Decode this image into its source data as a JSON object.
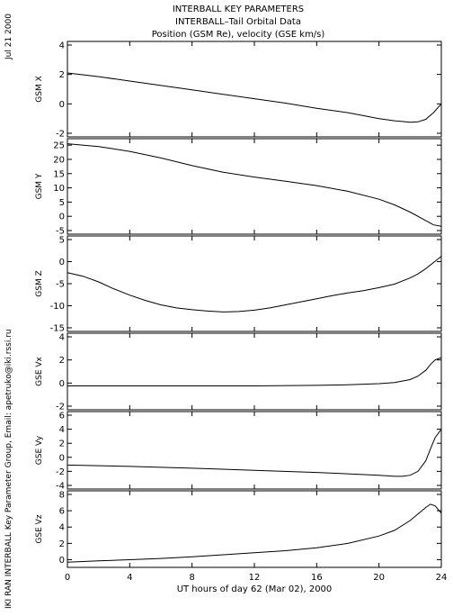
{
  "header": {
    "title_lines": [
      "INTERBALL KEY PARAMETERS",
      "INTERBALL–Tail Orbital Data",
      "Position (GSM Re), velocity (GSE km/s)"
    ],
    "date": "Jul 21 2000",
    "side_credit": "IKI RAN INTERBALL Key Parameter Group, Email: apetruko@iki.rssi.ru"
  },
  "chart_data": [
    {
      "type": "line",
      "ylabel": "GSM X",
      "ylim": [
        -2,
        4
      ],
      "yticks": [
        "-2",
        "0",
        "2",
        "4"
      ],
      "x": [
        0,
        2,
        4,
        6,
        8,
        10,
        12,
        14,
        16,
        18,
        20,
        21,
        21.5,
        22,
        22.5,
        23,
        23.5,
        24
      ],
      "values": [
        2.1,
        1.85,
        1.55,
        1.25,
        0.95,
        0.65,
        0.35,
        0.05,
        -0.3,
        -0.6,
        -1.0,
        -1.15,
        -1.2,
        -1.25,
        -1.22,
        -1.05,
        -0.6,
        0.0
      ]
    },
    {
      "type": "line",
      "ylabel": "GSM Y",
      "ylim": [
        -5,
        26
      ],
      "yticks": [
        "-5",
        "0",
        "5",
        "10",
        "15",
        "20",
        "25"
      ],
      "x": [
        0,
        2,
        4,
        6,
        8,
        10,
        12,
        14,
        16,
        18,
        20,
        21,
        22,
        23,
        23.5,
        24
      ],
      "values": [
        25.5,
        24.5,
        22.8,
        20.5,
        17.8,
        15.5,
        13.8,
        12.3,
        10.8,
        8.8,
        6.0,
        4.0,
        1.5,
        -1.5,
        -3.0,
        -3.5
      ]
    },
    {
      "type": "line",
      "ylabel": "GSM Z",
      "ylim": [
        -15,
        5
      ],
      "yticks": [
        "-15",
        "-10",
        "-5",
        "0",
        "5"
      ],
      "x": [
        0,
        1,
        2,
        3,
        4,
        5,
        6,
        7,
        8,
        9,
        10,
        11,
        12,
        13,
        14,
        15,
        16,
        17,
        18,
        19,
        20,
        21,
        22,
        22.5,
        23,
        23.5,
        24
      ],
      "values": [
        -2.5,
        -3.3,
        -4.6,
        -6.2,
        -7.6,
        -8.8,
        -9.8,
        -10.5,
        -10.9,
        -11.2,
        -11.4,
        -11.3,
        -11.0,
        -10.5,
        -9.8,
        -9.1,
        -8.4,
        -7.7,
        -7.1,
        -6.6,
        -5.9,
        -5.1,
        -3.7,
        -2.8,
        -1.6,
        -0.2,
        1.2
      ]
    },
    {
      "type": "line",
      "ylabel": "GSE Vx",
      "ylim": [
        -2,
        4
      ],
      "yticks": [
        "-2",
        "0",
        "2",
        "4"
      ],
      "x": [
        0,
        4,
        8,
        12,
        16,
        18,
        20,
        21,
        22,
        22.5,
        23,
        23.3,
        23.6,
        24
      ],
      "values": [
        -0.25,
        -0.25,
        -0.25,
        -0.25,
        -0.2,
        -0.15,
        -0.05,
        0.05,
        0.3,
        0.6,
        1.1,
        1.6,
        2.0,
        2.2
      ]
    },
    {
      "type": "line",
      "ylabel": "GSE Vy",
      "ylim": [
        -4,
        6
      ],
      "yticks": [
        "-4",
        "-2",
        "0",
        "2",
        "4",
        "6"
      ],
      "x": [
        0,
        4,
        8,
        12,
        16,
        20,
        21,
        21.5,
        22,
        22.5,
        23,
        23.3,
        23.6,
        24
      ],
      "values": [
        -1.1,
        -1.3,
        -1.55,
        -1.85,
        -2.15,
        -2.55,
        -2.7,
        -2.7,
        -2.55,
        -2.0,
        -0.5,
        1.2,
        2.8,
        4.0
      ]
    },
    {
      "type": "line",
      "ylabel": "GSE Vz",
      "ylim": [
        -0.5,
        8
      ],
      "yticks": [
        "0",
        "2",
        "4",
        "6",
        "8"
      ],
      "x": [
        0,
        2,
        4,
        6,
        8,
        10,
        12,
        14,
        16,
        18,
        20,
        21,
        22,
        22.5,
        23,
        23.3,
        23.6,
        24
      ],
      "values": [
        -0.3,
        -0.15,
        0.0,
        0.15,
        0.35,
        0.6,
        0.85,
        1.1,
        1.45,
        2.0,
        2.9,
        3.6,
        4.8,
        5.6,
        6.4,
        6.8,
        6.6,
        5.7
      ]
    }
  ],
  "x_axis": {
    "xlim": [
      0,
      24
    ],
    "ticks": [
      "0",
      "4",
      "8",
      "12",
      "16",
      "20",
      "24"
    ],
    "label": "UT hours of day  62 (Mar 02), 2000"
  }
}
